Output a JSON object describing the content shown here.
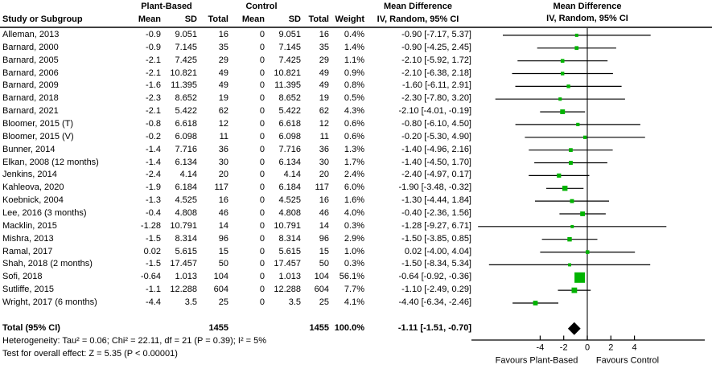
{
  "header": {
    "study_col": "Study or Subgroup",
    "group_plant": "Plant-Based",
    "group_control": "Control",
    "mean": "Mean",
    "sd": "SD",
    "total": "Total",
    "weight": "Weight",
    "md_title": "Mean Difference",
    "md_model": "IV, Random, 95% CI"
  },
  "chart_data": {
    "type": "forest",
    "effect_measure": "Mean Difference",
    "model": "IV, Random, 95% CI",
    "marker_color": "#00b300",
    "diamond_color": "#000000",
    "axis": {
      "tick_values": [
        -4,
        -2,
        0,
        2,
        4
      ],
      "tick_labels": [
        "-4",
        "-2",
        "0",
        "2",
        "4"
      ],
      "favours_left": "Favours Plant-Based",
      "favours_right": "Favours Control"
    },
    "studies": [
      {
        "name": "Alleman, 2013",
        "mean": "-0.9",
        "sd": "9.051",
        "total": "16",
        "c_mean": "0",
        "c_sd": "9.051",
        "c_total": "16",
        "weight": "0.4%",
        "ci": "-0.90 [-7.17, 5.37]",
        "md": -0.9,
        "lo": -7.17,
        "hi": 5.37,
        "w": 0.4
      },
      {
        "name": "Barnard, 2000",
        "mean": "-0.9",
        "sd": "7.145",
        "total": "35",
        "c_mean": "0",
        "c_sd": "7.145",
        "c_total": "35",
        "weight": "1.4%",
        "ci": "-0.90 [-4.25, 2.45]",
        "md": -0.9,
        "lo": -4.25,
        "hi": 2.45,
        "w": 1.4
      },
      {
        "name": "Barnard, 2005",
        "mean": "-2.1",
        "sd": "7.425",
        "total": "29",
        "c_mean": "0",
        "c_sd": "7.425",
        "c_total": "29",
        "weight": "1.1%",
        "ci": "-2.10 [-5.92, 1.72]",
        "md": -2.1,
        "lo": -5.92,
        "hi": 1.72,
        "w": 1.1
      },
      {
        "name": "Barnard, 2006",
        "mean": "-2.1",
        "sd": "10.821",
        "total": "49",
        "c_mean": "0",
        "c_sd": "10.821",
        "c_total": "49",
        "weight": "0.9%",
        "ci": "-2.10 [-6.38, 2.18]",
        "md": -2.1,
        "lo": -6.38,
        "hi": 2.18,
        "w": 0.9
      },
      {
        "name": "Barnard, 2009",
        "mean": "-1.6",
        "sd": "11.395",
        "total": "49",
        "c_mean": "0",
        "c_sd": "11.395",
        "c_total": "49",
        "weight": "0.8%",
        "ci": "-1.60 [-6.11, 2.91]",
        "md": -1.6,
        "lo": -6.11,
        "hi": 2.91,
        "w": 0.8
      },
      {
        "name": "Barnard, 2018",
        "mean": "-2.3",
        "sd": "8.652",
        "total": "19",
        "c_mean": "0",
        "c_sd": "8.652",
        "c_total": "19",
        "weight": "0.5%",
        "ci": "-2.30 [-7.80, 3.20]",
        "md": -2.3,
        "lo": -7.8,
        "hi": 3.2,
        "w": 0.5
      },
      {
        "name": "Barnard, 2021",
        "mean": "-2.1",
        "sd": "5.422",
        "total": "62",
        "c_mean": "0",
        "c_sd": "5.422",
        "c_total": "62",
        "weight": "4.3%",
        "ci": "-2.10 [-4.01, -0.19]",
        "md": -2.1,
        "lo": -4.01,
        "hi": -0.19,
        "w": 4.3
      },
      {
        "name": "Bloomer, 2015 (T)",
        "mean": "-0.8",
        "sd": "6.618",
        "total": "12",
        "c_mean": "0",
        "c_sd": "6.618",
        "c_total": "12",
        "weight": "0.6%",
        "ci": "-0.80 [-6.10, 4.50]",
        "md": -0.8,
        "lo": -6.1,
        "hi": 4.5,
        "w": 0.6
      },
      {
        "name": "Bloomer, 2015 (V)",
        "mean": "-0.2",
        "sd": "6.098",
        "total": "11",
        "c_mean": "0",
        "c_sd": "6.098",
        "c_total": "11",
        "weight": "0.6%",
        "ci": "-0.20 [-5.30, 4.90]",
        "md": -0.2,
        "lo": -5.3,
        "hi": 4.9,
        "w": 0.6
      },
      {
        "name": "Bunner, 2014",
        "mean": "-1.4",
        "sd": "7.716",
        "total": "36",
        "c_mean": "0",
        "c_sd": "7.716",
        "c_total": "36",
        "weight": "1.3%",
        "ci": "-1.40 [-4.96, 2.16]",
        "md": -1.4,
        "lo": -4.96,
        "hi": 2.16,
        "w": 1.3
      },
      {
        "name": "Elkan, 2008 (12 months)",
        "mean": "-1.4",
        "sd": "6.134",
        "total": "30",
        "c_mean": "0",
        "c_sd": "6.134",
        "c_total": "30",
        "weight": "1.7%",
        "ci": "-1.40 [-4.50, 1.70]",
        "md": -1.4,
        "lo": -4.5,
        "hi": 1.7,
        "w": 1.7
      },
      {
        "name": "Jenkins, 2014",
        "mean": "-2.4",
        "sd": "4.14",
        "total": "20",
        "c_mean": "0",
        "c_sd": "4.14",
        "c_total": "20",
        "weight": "2.4%",
        "ci": "-2.40 [-4.97, 0.17]",
        "md": -2.4,
        "lo": -4.97,
        "hi": 0.17,
        "w": 2.4
      },
      {
        "name": "Kahleova, 2020",
        "mean": "-1.9",
        "sd": "6.184",
        "total": "117",
        "c_mean": "0",
        "c_sd": "6.184",
        "c_total": "117",
        "weight": "6.0%",
        "ci": "-1.90 [-3.48, -0.32]",
        "md": -1.9,
        "lo": -3.48,
        "hi": -0.32,
        "w": 6.0
      },
      {
        "name": "Koebnick, 2004",
        "mean": "-1.3",
        "sd": "4.525",
        "total": "16",
        "c_mean": "0",
        "c_sd": "4.525",
        "c_total": "16",
        "weight": "1.6%",
        "ci": "-1.30 [-4.44, 1.84]",
        "md": -1.3,
        "lo": -4.44,
        "hi": 1.84,
        "w": 1.6
      },
      {
        "name": "Lee, 2016 (3 months)",
        "mean": "-0.4",
        "sd": "4.808",
        "total": "46",
        "c_mean": "0",
        "c_sd": "4.808",
        "c_total": "46",
        "weight": "4.0%",
        "ci": "-0.40 [-2.36, 1.56]",
        "md": -0.4,
        "lo": -2.36,
        "hi": 1.56,
        "w": 4.0
      },
      {
        "name": "Macklin, 2015",
        "mean": "-1.28",
        "sd": "10.791",
        "total": "14",
        "c_mean": "0",
        "c_sd": "10.791",
        "c_total": "14",
        "weight": "0.3%",
        "ci": "-1.28 [-9.27, 6.71]",
        "md": -1.28,
        "lo": -9.27,
        "hi": 6.71,
        "w": 0.3
      },
      {
        "name": "Mishra, 2013",
        "mean": "-1.5",
        "sd": "8.314",
        "total": "96",
        "c_mean": "0",
        "c_sd": "8.314",
        "c_total": "96",
        "weight": "2.9%",
        "ci": "-1.50 [-3.85, 0.85]",
        "md": -1.5,
        "lo": -3.85,
        "hi": 0.85,
        "w": 2.9
      },
      {
        "name": "Ramal, 2017",
        "mean": "0.02",
        "sd": "5.615",
        "total": "15",
        "c_mean": "0",
        "c_sd": "5.615",
        "c_total": "15",
        "weight": "1.0%",
        "ci": "0.02 [-4.00, 4.04]",
        "md": 0.02,
        "lo": -4.0,
        "hi": 4.04,
        "w": 1.0
      },
      {
        "name": "Shah, 2018 (2 months)",
        "mean": "-1.5",
        "sd": "17.457",
        "total": "50",
        "c_mean": "0",
        "c_sd": "17.457",
        "c_total": "50",
        "weight": "0.3%",
        "ci": "-1.50 [-8.34, 5.34]",
        "md": -1.5,
        "lo": -8.34,
        "hi": 5.34,
        "w": 0.3
      },
      {
        "name": "Sofi, 2018",
        "mean": "-0.64",
        "sd": "1.013",
        "total": "104",
        "c_mean": "0",
        "c_sd": "1.013",
        "c_total": "104",
        "weight": "56.1%",
        "ci": "-0.64 [-0.92, -0.36]",
        "md": -0.64,
        "lo": -0.92,
        "hi": -0.36,
        "w": 56.1
      },
      {
        "name": "Sutliffe, 2015",
        "mean": "-1.1",
        "sd": "12.288",
        "total": "604",
        "c_mean": "0",
        "c_sd": "12.288",
        "c_total": "604",
        "weight": "7.7%",
        "ci": "-1.10 [-2.49, 0.29]",
        "md": -1.1,
        "lo": -2.49,
        "hi": 0.29,
        "w": 7.7
      },
      {
        "name": "Wright, 2017 (6 months)",
        "mean": "-4.4",
        "sd": "3.5",
        "total": "25",
        "c_mean": "0",
        "c_sd": "3.5",
        "c_total": "25",
        "weight": "4.1%",
        "ci": "-4.40 [-6.34, -2.46]",
        "md": -4.4,
        "lo": -6.34,
        "hi": -2.46,
        "w": 4.1
      }
    ],
    "total": {
      "label": "Total (95% CI)",
      "total": "1455",
      "c_total": "1455",
      "weight": "100.0%",
      "ci": "-1.11 [-1.51, -0.70]",
      "md": -1.11,
      "lo": -1.51,
      "hi": -0.7
    },
    "heterogeneity": "Heterogeneity: Tau² = 0.06; Chi² = 22.11, df = 21 (P = 0.39); I² = 5%",
    "overall_effect": "Test for overall effect: Z = 5.35 (P < 0.00001)"
  }
}
